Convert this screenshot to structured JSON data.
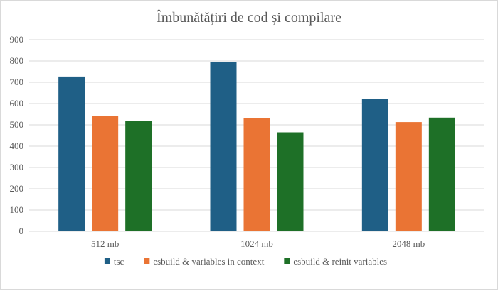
{
  "chart_data": {
    "type": "bar",
    "title": "Îmbunătățiri de cod și compilare",
    "xlabel": "",
    "ylabel": "",
    "categories": [
      "512 mb",
      "1024 mb",
      "2048 mb"
    ],
    "series": [
      {
        "name": "tsc",
        "color": "#1F5F86",
        "values": [
          727,
          795,
          620
        ]
      },
      {
        "name": "esbuild & variables in context",
        "color": "#EA7434",
        "values": [
          542,
          530,
          513
        ]
      },
      {
        "name": "esbuild & reinit variables",
        "color": "#1E7027",
        "values": [
          520,
          465,
          534
        ]
      }
    ],
    "ylim": [
      0,
      900
    ],
    "yticks": [
      0,
      100,
      200,
      300,
      400,
      500,
      600,
      700,
      800,
      900
    ],
    "grid": true,
    "legend_position": "bottom"
  }
}
